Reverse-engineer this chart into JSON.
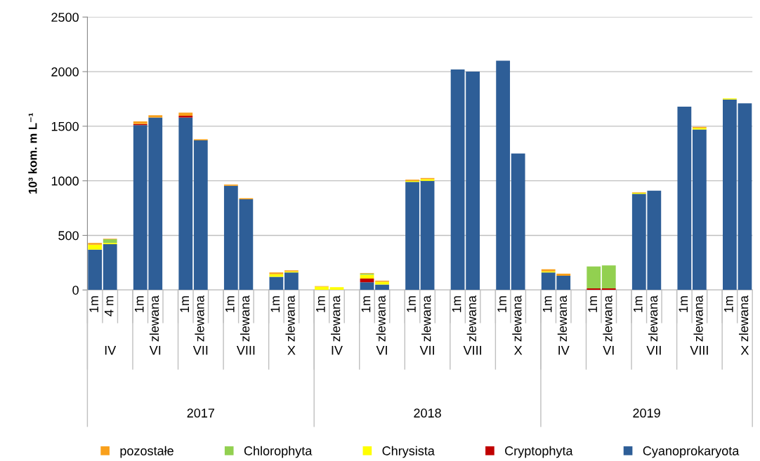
{
  "chart_data": {
    "type": "bar",
    "stacked": true,
    "ylabel": "10³ kom. m L⁻¹",
    "categories": [
      "1m",
      "4 m",
      null,
      "1m",
      "zlewana",
      null,
      "1m",
      "zlewana",
      null,
      "1m",
      "zlewana",
      null,
      "1m",
      "zlewana",
      null,
      "1m",
      "zlewana",
      null,
      "1m",
      "zlewana",
      null,
      "1m",
      "zlewana",
      null,
      "1m",
      "zlewana",
      null,
      "1m",
      "zlewana",
      null,
      "1m",
      "zlewana",
      null,
      "1m",
      "zlewana",
      null,
      "1m",
      "zlewana",
      null,
      "1m",
      "zlewana",
      null,
      "1m",
      "zlewana"
    ],
    "series": [
      {
        "name": "Cyanoprokaryota",
        "color": "#2e5e97",
        "values": [
          370,
          420,
          null,
          1510,
          1580,
          null,
          1580,
          1370,
          null,
          955,
          830,
          null,
          120,
          160,
          null,
          0,
          0,
          null,
          70,
          50,
          null,
          990,
          1000,
          null,
          2020,
          2000,
          null,
          2100,
          1250,
          null,
          160,
          130,
          null,
          0,
          0,
          null,
          880,
          910,
          null,
          1680,
          1470,
          null,
          1745,
          1710
        ]
      },
      {
        "name": "Cryptophyta",
        "color": "#c00000",
        "values": [
          0,
          0,
          null,
          10,
          0,
          null,
          15,
          0,
          null,
          0,
          0,
          null,
          0,
          0,
          null,
          0,
          0,
          null,
          35,
          0,
          null,
          0,
          0,
          null,
          0,
          0,
          null,
          0,
          0,
          null,
          0,
          0,
          null,
          15,
          15,
          null,
          0,
          0,
          null,
          0,
          0,
          null,
          0,
          0
        ]
      },
      {
        "name": "Chrysista",
        "color": "#ffff00",
        "values": [
          45,
          10,
          null,
          0,
          0,
          null,
          0,
          0,
          null,
          0,
          0,
          null,
          25,
          10,
          null,
          30,
          25,
          null,
          35,
          25,
          null,
          10,
          15,
          null,
          0,
          0,
          null,
          0,
          0,
          null,
          10,
          0,
          null,
          0,
          0,
          null,
          10,
          0,
          null,
          0,
          15,
          null,
          10,
          0
        ]
      },
      {
        "name": "Chlorophyta",
        "color": "#92d050",
        "values": [
          0,
          35,
          null,
          0,
          0,
          null,
          0,
          0,
          null,
          0,
          0,
          null,
          0,
          0,
          null,
          0,
          0,
          null,
          10,
          0,
          null,
          0,
          0,
          null,
          0,
          0,
          null,
          0,
          0,
          null,
          0,
          0,
          null,
          200,
          210,
          null,
          0,
          0,
          null,
          0,
          0,
          null,
          0,
          0
        ]
      },
      {
        "name": "pozostałe",
        "color": "#f9a01b",
        "values": [
          15,
          5,
          null,
          25,
          20,
          null,
          30,
          10,
          null,
          10,
          10,
          null,
          15,
          10,
          null,
          5,
          0,
          null,
          5,
          10,
          null,
          10,
          10,
          null,
          0,
          0,
          null,
          0,
          0,
          null,
          20,
          20,
          null,
          0,
          0,
          null,
          5,
          0,
          null,
          0,
          10,
          null,
          0,
          0
        ]
      }
    ],
    "ylim": [
      0,
      2500
    ],
    "yticks": [
      0,
      500,
      1000,
      1500,
      2000,
      2500
    ],
    "grid": "y",
    "legend": "bottom",
    "annotations": [
      "IV",
      "VI",
      "VII",
      "VIII",
      "X",
      "IV",
      "VI",
      "VII",
      "VIII",
      "X",
      "IV",
      "VI",
      "VII",
      "VIII",
      "X",
      "2017",
      "2018",
      "2019"
    ]
  }
}
